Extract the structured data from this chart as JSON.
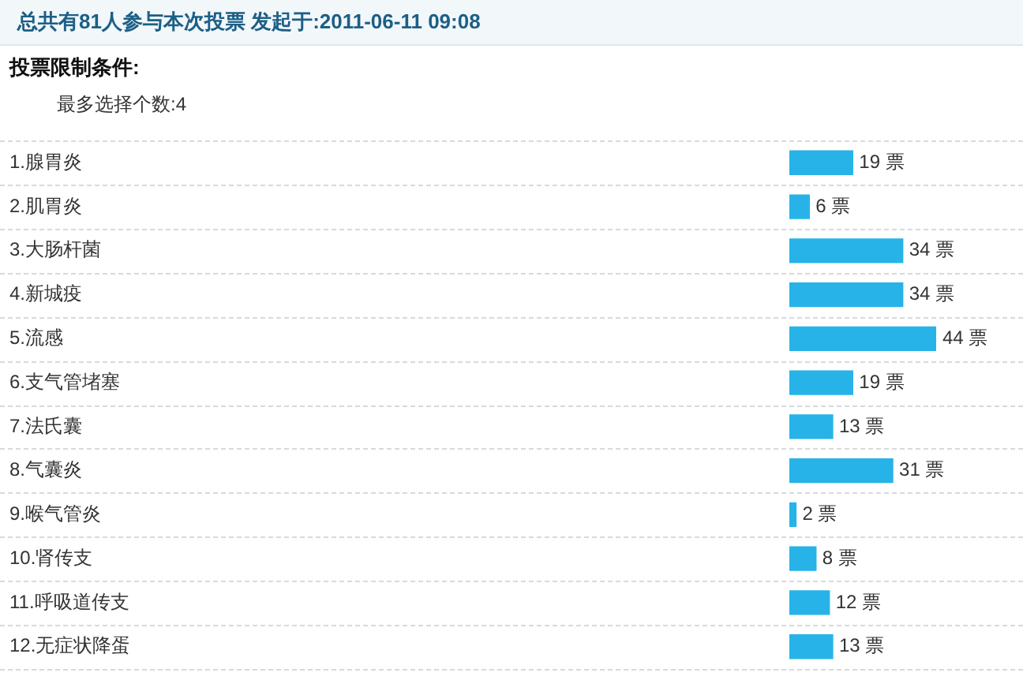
{
  "chart_data": {
    "type": "bar",
    "orientation": "horizontal",
    "title": "总共有81人参与本次投票 发起于:2011-06-11 09:08",
    "subtitle": "投票限制条件:",
    "annotations": [
      "最多选择个数:4"
    ],
    "categories": [
      "1.腺胃炎",
      "2.肌胃炎",
      "3.大肠杆菌",
      "4.新城疫",
      "5.流感",
      "6.支气管堵塞",
      "7.法氏囊",
      "8.气囊炎",
      "9.喉气管炎",
      "10.肾传支",
      "11.呼吸道传支",
      "12.无症状降蛋"
    ],
    "values": [
      19,
      6,
      34,
      34,
      44,
      19,
      13,
      31,
      2,
      8,
      12,
      13
    ],
    "value_labels": [
      "19 票",
      "6 票",
      "34 票",
      "34 票",
      "44 票",
      "19 票",
      "13 票",
      "31 票",
      "2 票",
      "8 票",
      "12 票",
      "13 票"
    ],
    "color": "#27b3e8",
    "grid": "y",
    "tick_labels": "y"
  }
}
